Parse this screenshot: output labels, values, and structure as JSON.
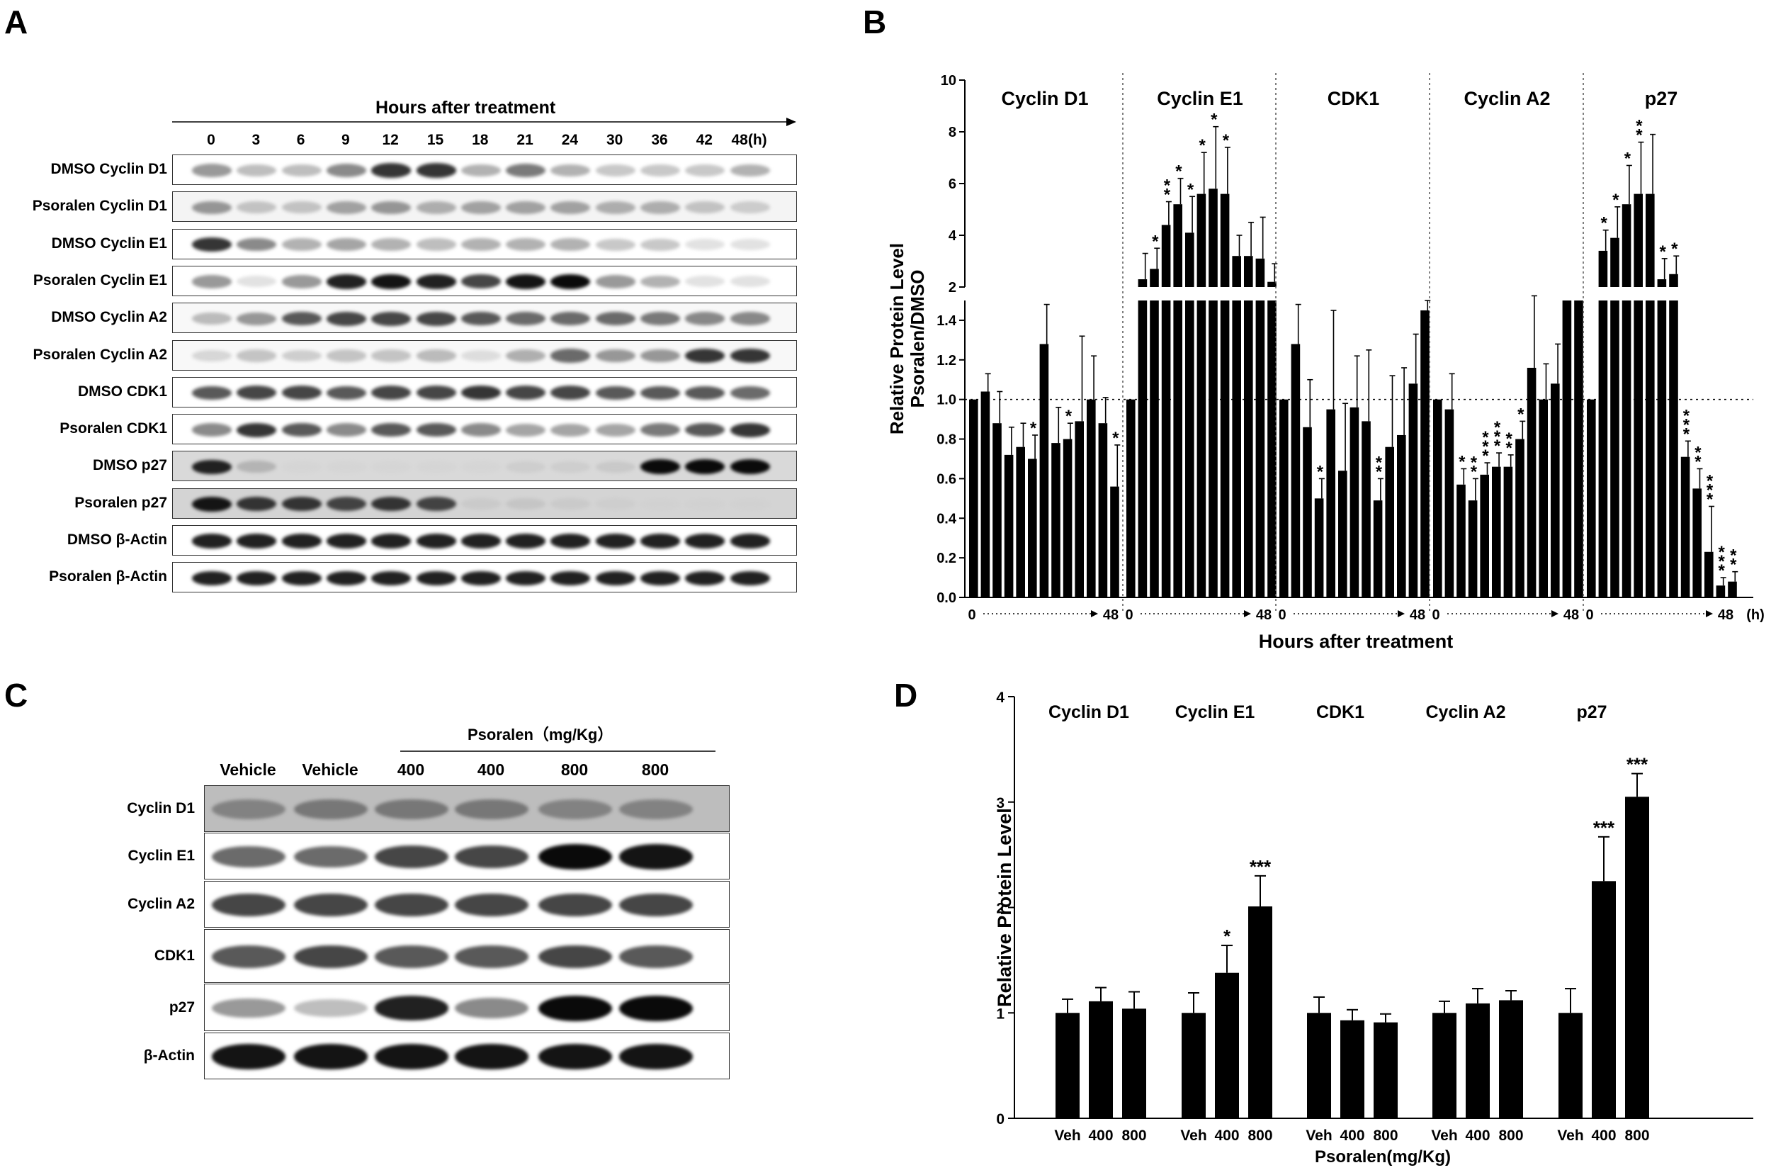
{
  "panels": {
    "a": "A",
    "b": "B",
    "c": "C",
    "d": "D"
  },
  "panel_a": {
    "header": "Hours after treatment",
    "timepoints": [
      "0",
      "3",
      "6",
      "9",
      "12",
      "15",
      "18",
      "21",
      "24",
      "30",
      "36",
      "42",
      "48(h)"
    ],
    "rows": [
      {
        "label": "DMSO Cyclin D1",
        "bg": "#ffffff",
        "intensity": [
          0.55,
          0.4,
          0.4,
          0.6,
          0.85,
          0.85,
          0.45,
          0.65,
          0.45,
          0.35,
          0.35,
          0.35,
          0.45
        ]
      },
      {
        "label": "Psoralen Cyclin D1",
        "bg": "#f4f4f4",
        "intensity": [
          0.55,
          0.35,
          0.35,
          0.5,
          0.55,
          0.45,
          0.5,
          0.5,
          0.5,
          0.45,
          0.45,
          0.35,
          0.3
        ]
      },
      {
        "label": "DMSO Cyclin E1",
        "bg": "#ffffff",
        "intensity": [
          0.85,
          0.6,
          0.45,
          0.5,
          0.45,
          0.4,
          0.45,
          0.45,
          0.45,
          0.35,
          0.35,
          0.2,
          0.2
        ]
      },
      {
        "label": "Psoralen Cyclin E1",
        "bg": "#ffffff",
        "intensity": [
          0.55,
          0.2,
          0.55,
          0.9,
          0.95,
          0.9,
          0.8,
          0.95,
          1.0,
          0.55,
          0.45,
          0.2,
          0.2
        ]
      },
      {
        "label": "DMSO Cyclin A2",
        "bg": "#f8f8f8",
        "intensity": [
          0.4,
          0.55,
          0.75,
          0.8,
          0.8,
          0.8,
          0.75,
          0.7,
          0.7,
          0.7,
          0.65,
          0.6,
          0.6
        ]
      },
      {
        "label": "Psoralen Cyclin A2",
        "bg": "#f8f8f8",
        "intensity": [
          0.25,
          0.35,
          0.3,
          0.35,
          0.35,
          0.4,
          0.2,
          0.45,
          0.7,
          0.55,
          0.55,
          0.85,
          0.85
        ]
      },
      {
        "label": "DMSO CDK1",
        "bg": "#ffffff",
        "intensity": [
          0.75,
          0.8,
          0.8,
          0.75,
          0.8,
          0.8,
          0.85,
          0.8,
          0.8,
          0.75,
          0.75,
          0.75,
          0.7
        ]
      },
      {
        "label": "Psoralen CDK1",
        "bg": "#ffffff",
        "intensity": [
          0.6,
          0.85,
          0.75,
          0.6,
          0.75,
          0.75,
          0.6,
          0.5,
          0.5,
          0.5,
          0.65,
          0.75,
          0.85
        ]
      },
      {
        "label": "DMSO p27",
        "bg": "#d9d9d9",
        "intensity": [
          0.9,
          0.35,
          0.05,
          0.05,
          0.05,
          0.05,
          0.05,
          0.15,
          0.15,
          0.2,
          1.0,
          1.0,
          1.0
        ]
      },
      {
        "label": "Psoralen p27",
        "bg": "#d4d4d4",
        "intensity": [
          0.95,
          0.85,
          0.85,
          0.8,
          0.85,
          0.8,
          0.15,
          0.2,
          0.15,
          0.1,
          0.05,
          0.05,
          0.05
        ]
      },
      {
        "label": "DMSO β-Actin",
        "bg": "#ffffff",
        "intensity": [
          0.9,
          0.9,
          0.9,
          0.9,
          0.9,
          0.9,
          0.9,
          0.9,
          0.9,
          0.9,
          0.9,
          0.9,
          0.9
        ]
      },
      {
        "label": "Psoralen β-Actin",
        "bg": "#ffffff",
        "intensity": [
          0.9,
          0.9,
          0.9,
          0.9,
          0.9,
          0.9,
          0.9,
          0.9,
          0.9,
          0.9,
          0.9,
          0.9,
          0.9
        ]
      }
    ]
  },
  "panel_c": {
    "group_label": "Psoralen（mg/Kg）",
    "lanes": [
      "Vehicle",
      "Vehicle",
      "400",
      "400",
      "800",
      "800"
    ],
    "rows": [
      {
        "label": "Cyclin D1",
        "bg": "#bdbdbd",
        "intensity": [
          0.55,
          0.6,
          0.6,
          0.6,
          0.55,
          0.55
        ]
      },
      {
        "label": "Cyclin E1",
        "bg": "#ffffff",
        "intensity": [
          0.7,
          0.7,
          0.8,
          0.8,
          1.0,
          0.95
        ]
      },
      {
        "label": "Cyclin A2",
        "bg": "#ffffff",
        "intensity": [
          0.8,
          0.8,
          0.8,
          0.8,
          0.8,
          0.8
        ]
      },
      {
        "label": "CDK1",
        "bg": "#ffffff",
        "intensity": [
          0.75,
          0.8,
          0.75,
          0.75,
          0.8,
          0.75
        ]
      },
      {
        "label": "p27",
        "bg": "#ffffff",
        "intensity": [
          0.55,
          0.4,
          0.9,
          0.6,
          1.0,
          1.0
        ]
      },
      {
        "label": "β-Actin",
        "bg": "#ffffff",
        "intensity": [
          0.95,
          0.95,
          0.95,
          0.95,
          0.95,
          0.95
        ]
      }
    ]
  },
  "chart_data": [
    {
      "type": "bar",
      "panel": "B",
      "ylabel": "Relative Protein Level\nPsoralen/DMSO",
      "xlabel": "Hours after treatment",
      "y_axis": {
        "type": "broken",
        "lower_range": [
          0,
          1.5
        ],
        "lower_ticks": [
          0.0,
          0.2,
          0.4,
          0.6,
          0.8,
          1.0,
          1.2,
          1.4
        ],
        "upper_range": [
          2,
          10
        ],
        "upper_ticks": [
          2,
          4,
          6,
          8,
          10
        ]
      },
      "reference_line": 1.0,
      "x_start_label": "0",
      "x_end_label": "48",
      "x_unit_label": "(h)",
      "x_timepoints": [
        0,
        3,
        6,
        9,
        12,
        15,
        18,
        21,
        24,
        30,
        36,
        42,
        48
      ],
      "groups": [
        {
          "name": "Cyclin D1",
          "values": [
            1.0,
            1.04,
            0.88,
            0.72,
            0.76,
            0.7,
            1.28,
            0.78,
            0.8,
            0.89,
            1.0,
            0.88,
            0.56
          ],
          "errors": [
            0.0,
            0.09,
            0.16,
            0.14,
            0.12,
            0.12,
            0.2,
            0.18,
            0.08,
            0.43,
            0.22,
            0.13,
            0.21
          ],
          "stars": [
            "",
            "",
            "",
            "",
            "",
            "*",
            "",
            "",
            "*",
            "",
            "",
            "",
            "*"
          ]
        },
        {
          "name": "Cyclin E1",
          "values": [
            1.0,
            2.3,
            2.7,
            4.4,
            5.2,
            4.1,
            5.6,
            5.8,
            5.6,
            3.2,
            3.2,
            3.1,
            2.2
          ],
          "errors": [
            0.0,
            1.0,
            0.8,
            0.9,
            1.0,
            1.4,
            1.6,
            2.4,
            1.8,
            0.8,
            1.3,
            1.6,
            0.7
          ],
          "stars": [
            "",
            "",
            "*",
            "**",
            "*",
            "*",
            "*",
            "*",
            "*",
            "",
            "",
            "",
            ""
          ]
        },
        {
          "name": "CDK1",
          "values": [
            1.0,
            1.28,
            0.86,
            0.5,
            0.95,
            0.64,
            0.96,
            0.89,
            0.49,
            0.76,
            0.82,
            1.08,
            1.45
          ],
          "errors": [
            0.0,
            0.2,
            0.24,
            0.1,
            0.5,
            0.34,
            0.26,
            0.36,
            0.11,
            0.36,
            0.34,
            0.25,
            0.05
          ],
          "stars": [
            "",
            "",
            "",
            "*",
            "",
            "",
            "",
            "",
            "**",
            "",
            "",
            "",
            ""
          ]
        },
        {
          "name": "Cyclin A2",
          "values": [
            1.0,
            0.95,
            0.57,
            0.49,
            0.62,
            0.66,
            0.66,
            0.8,
            1.16,
            1.0,
            1.08,
            1.5,
            1.5
          ],
          "errors": [
            0.0,
            0.18,
            0.08,
            0.11,
            0.06,
            0.07,
            0.06,
            0.09,
            0.5,
            0.18,
            0.2,
            0.0,
            0.0
          ],
          "stars": [
            "",
            "",
            "*",
            "**",
            "***",
            "***",
            "**",
            "*",
            "",
            "",
            "",
            "",
            ""
          ]
        },
        {
          "name": "p27",
          "values": [
            1.0,
            3.4,
            3.9,
            5.2,
            5.6,
            5.6,
            2.3,
            2.5,
            0.71,
            0.55,
            0.23,
            0.06,
            0.08
          ],
          "errors": [
            0.0,
            0.8,
            1.2,
            1.5,
            2.0,
            2.3,
            0.8,
            0.7,
            0.08,
            0.1,
            0.23,
            0.04,
            0.05
          ],
          "stars": [
            "",
            "*",
            "*",
            "*",
            "**",
            "",
            "*",
            "*",
            "***",
            "**",
            "***",
            "***",
            "**"
          ]
        }
      ]
    },
    {
      "type": "bar",
      "panel": "D",
      "ylabel": "Relative Protein Level",
      "xlabel": "Psoralen(mg/Kg)",
      "ylim": [
        0,
        4
      ],
      "yticks": [
        0,
        1,
        2,
        3,
        4
      ],
      "categories": [
        "Veh",
        "400",
        "800"
      ],
      "groups": [
        {
          "name": "Cyclin D1",
          "values": [
            1.0,
            1.11,
            1.04
          ],
          "errors": [
            0.13,
            0.13,
            0.16
          ],
          "stars": [
            "",
            "",
            ""
          ]
        },
        {
          "name": "Cyclin E1",
          "values": [
            1.0,
            1.38,
            2.01
          ],
          "errors": [
            0.19,
            0.26,
            0.29
          ],
          "stars": [
            "",
            "*",
            "***"
          ]
        },
        {
          "name": "CDK1",
          "values": [
            1.0,
            0.93,
            0.91
          ],
          "errors": [
            0.15,
            0.1,
            0.08
          ],
          "stars": [
            "",
            "",
            ""
          ]
        },
        {
          "name": "Cyclin A2",
          "values": [
            1.0,
            1.09,
            1.12
          ],
          "errors": [
            0.11,
            0.14,
            0.09
          ],
          "stars": [
            "",
            "",
            ""
          ]
        },
        {
          "name": "p27",
          "values": [
            1.0,
            2.25,
            3.05
          ],
          "errors": [
            0.23,
            0.42,
            0.22
          ],
          "stars": [
            "",
            "***",
            "***"
          ]
        }
      ]
    }
  ]
}
